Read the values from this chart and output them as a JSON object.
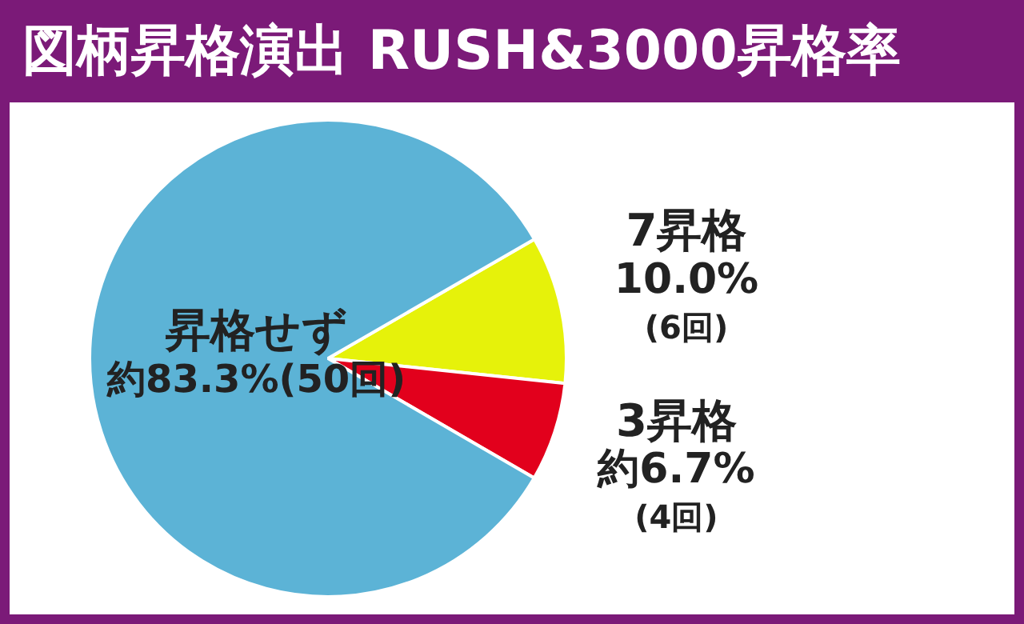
{
  "chart_data": {
    "type": "pie",
    "title": "図柄昇格演出 RUSH&3000昇格率",
    "categories": [
      "7昇格",
      "3昇格",
      "昇格せず"
    ],
    "values": [
      10.0,
      6.7,
      83.3
    ],
    "colors": [
      "#e6f20a",
      "#e2001c",
      "#5cb3d6"
    ],
    "value_labels": [
      "10.0%\n(6回)",
      "約6.7%\n(4回)",
      "約83.3%(50回)"
    ],
    "legend": false
  }
}
